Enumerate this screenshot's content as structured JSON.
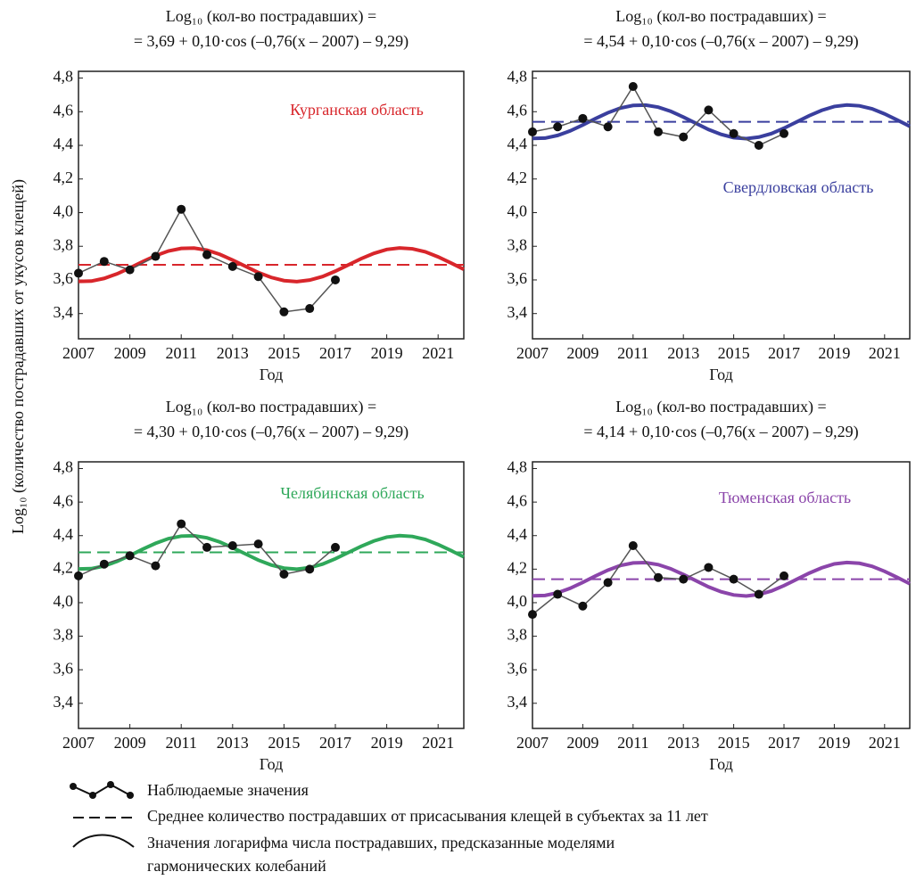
{
  "y_label": "Log₁₀ (количество пострадавших от укусов клещей)",
  "legend": [
    [
      "Наблюдаемые значения"
    ],
    [
      "Среднее количество пострадавших от присасывания клещей в субъектах за 11 лет"
    ],
    [
      "Значения логарифма числа пострадавших, предсказанные моделями",
      "гармонических колебаний"
    ]
  ],
  "chart_data": [
    {
      "type": "line",
      "title": [
        "Log₁₀ (кол-во пострадавших) =",
        "= 3,69 + 0,10·cos (–0,76(x – 2007) – 9,29)"
      ],
      "annotation": "Курганская область",
      "color": "#d8262b",
      "xlabel": "Год",
      "x": [
        2007,
        2008,
        2009,
        2010,
        2011,
        2012,
        2013,
        2014,
        2015,
        2016,
        2017
      ],
      "values": [
        3.64,
        3.71,
        3.66,
        3.74,
        4.02,
        3.75,
        3.68,
        3.62,
        3.41,
        3.43,
        3.6
      ],
      "mean": 3.69,
      "curve_x": [
        2007,
        2007.5,
        2008,
        2008.5,
        2009,
        2009.5,
        2010,
        2010.5,
        2011,
        2011.5,
        2012,
        2012.5,
        2013,
        2013.5,
        2014,
        2014.5,
        2015,
        2015.5,
        2016,
        2016.5,
        2017,
        2017.5,
        2018,
        2018.5,
        2019,
        2019.5,
        2020,
        2020.5,
        2021,
        2021.5,
        2022
      ],
      "curve": [
        3.591,
        3.593,
        3.609,
        3.636,
        3.671,
        3.709,
        3.744,
        3.772,
        3.787,
        3.789,
        3.777,
        3.752,
        3.718,
        3.681,
        3.644,
        3.615,
        3.596,
        3.59,
        3.599,
        3.62,
        3.652,
        3.689,
        3.726,
        3.758,
        3.781,
        3.79,
        3.785,
        3.767,
        3.737,
        3.701,
        3.663
      ],
      "xlim": [
        2007,
        2022
      ],
      "xticks": [
        2007,
        2009,
        2011,
        2013,
        2015,
        2017,
        2019,
        2021
      ],
      "ylim": [
        3.25,
        4.84
      ],
      "yticks": [
        {
          "value": 3.4,
          "label": "3,4"
        },
        {
          "value": 3.6,
          "label": "3,6"
        },
        {
          "value": 3.8,
          "label": "3,8"
        },
        {
          "value": 4.0,
          "label": "4,0"
        },
        {
          "value": 4.2,
          "label": "4,2"
        },
        {
          "value": 4.4,
          "label": "4,4"
        },
        {
          "value": 4.6,
          "label": "4,6"
        },
        {
          "value": 4.8,
          "label": "4,8"
        }
      ]
    },
    {
      "type": "line",
      "title": [
        "Log₁₀ (кол-во пострадавших) =",
        "= 4,54 + 0,10·cos (–0,76(x – 2007) – 9,29)"
      ],
      "annotation": "Свердловская область",
      "color": "#3a3f9e",
      "xlabel": "Год",
      "x": [
        2007,
        2008,
        2009,
        2010,
        2011,
        2012,
        2013,
        2014,
        2015,
        2016,
        2017
      ],
      "values": [
        4.48,
        4.51,
        4.56,
        4.51,
        4.75,
        4.48,
        4.45,
        4.61,
        4.47,
        4.4,
        4.47
      ],
      "mean": 4.54,
      "curve_x": [
        2007,
        2007.5,
        2008,
        2008.5,
        2009,
        2009.5,
        2010,
        2010.5,
        2011,
        2011.5,
        2012,
        2012.5,
        2013,
        2013.5,
        2014,
        2014.5,
        2015,
        2015.5,
        2016,
        2016.5,
        2017,
        2017.5,
        2018,
        2018.5,
        2019,
        2019.5,
        2020,
        2020.5,
        2021,
        2021.5,
        2022
      ],
      "curve": [
        4.441,
        4.443,
        4.459,
        4.486,
        4.521,
        4.559,
        4.594,
        4.622,
        4.637,
        4.639,
        4.627,
        4.602,
        4.568,
        4.531,
        4.494,
        4.465,
        4.446,
        4.44,
        4.449,
        4.47,
        4.502,
        4.539,
        4.576,
        4.608,
        4.631,
        4.64,
        4.635,
        4.617,
        4.587,
        4.551,
        4.513
      ],
      "xlim": [
        2007,
        2022
      ],
      "xticks": [
        2007,
        2009,
        2011,
        2013,
        2015,
        2017,
        2019,
        2021
      ],
      "ylim": [
        3.25,
        4.84
      ],
      "yticks": [
        {
          "value": 3.4,
          "label": "3,4"
        },
        {
          "value": 3.6,
          "label": "3,6"
        },
        {
          "value": 3.8,
          "label": "3,8"
        },
        {
          "value": 4.0,
          "label": "4,0"
        },
        {
          "value": 4.2,
          "label": "4,2"
        },
        {
          "value": 4.4,
          "label": "4,4"
        },
        {
          "value": 4.6,
          "label": "4,6"
        },
        {
          "value": 4.8,
          "label": "4,8"
        }
      ]
    },
    {
      "type": "line",
      "title": [
        "Log₁₀ (кол-во пострадавших) =",
        "= 4,30 + 0,10·cos (–0,76(x – 2007) – 9,29)"
      ],
      "annotation": "Челябинская область",
      "color": "#2fa85a",
      "xlabel": "Год",
      "x": [
        2007,
        2008,
        2009,
        2010,
        2011,
        2012,
        2013,
        2014,
        2015,
        2016,
        2017
      ],
      "values": [
        4.16,
        4.23,
        4.28,
        4.22,
        4.47,
        4.33,
        4.34,
        4.35,
        4.17,
        4.2,
        4.33
      ],
      "mean": 4.3,
      "curve_x": [
        2007,
        2007.5,
        2008,
        2008.5,
        2009,
        2009.5,
        2010,
        2010.5,
        2011,
        2011.5,
        2012,
        2012.5,
        2013,
        2013.5,
        2014,
        2014.5,
        2015,
        2015.5,
        2016,
        2016.5,
        2017,
        2017.5,
        2018,
        2018.5,
        2019,
        2019.5,
        2020,
        2020.5,
        2021,
        2021.5,
        2022
      ],
      "curve": [
        4.201,
        4.203,
        4.219,
        4.246,
        4.281,
        4.319,
        4.354,
        4.382,
        4.397,
        4.399,
        4.387,
        4.362,
        4.328,
        4.291,
        4.254,
        4.225,
        4.206,
        4.2,
        4.209,
        4.23,
        4.262,
        4.299,
        4.336,
        4.368,
        4.391,
        4.4,
        4.395,
        4.377,
        4.347,
        4.311,
        4.273
      ],
      "xlim": [
        2007,
        2022
      ],
      "xticks": [
        2007,
        2009,
        2011,
        2013,
        2015,
        2017,
        2019,
        2021
      ],
      "ylim": [
        3.25,
        4.84
      ],
      "yticks": [
        {
          "value": 3.4,
          "label": "3,4"
        },
        {
          "value": 3.6,
          "label": "3,6"
        },
        {
          "value": 3.8,
          "label": "3,8"
        },
        {
          "value": 4.0,
          "label": "4,0"
        },
        {
          "value": 4.2,
          "label": "4,2"
        },
        {
          "value": 4.4,
          "label": "4,4"
        },
        {
          "value": 4.6,
          "label": "4,6"
        },
        {
          "value": 4.8,
          "label": "4,8"
        }
      ]
    },
    {
      "type": "line",
      "title": [
        "Log₁₀ (кол-во пострадавших) =",
        "= 4,14 + 0,10·cos (–0,76(x – 2007) – 9,29)"
      ],
      "annotation": "Тюменская область",
      "color": "#8b45aa",
      "xlabel": "Год",
      "x": [
        2007,
        2008,
        2009,
        2010,
        2011,
        2012,
        2013,
        2014,
        2015,
        2016,
        2017
      ],
      "values": [
        3.93,
        4.05,
        3.98,
        4.12,
        4.34,
        4.15,
        4.14,
        4.21,
        4.14,
        4.05,
        4.16
      ],
      "mean": 4.14,
      "curve_x": [
        2007,
        2007.5,
        2008,
        2008.5,
        2009,
        2009.5,
        2010,
        2010.5,
        2011,
        2011.5,
        2012,
        2012.5,
        2013,
        2013.5,
        2014,
        2014.5,
        2015,
        2015.5,
        2016,
        2016.5,
        2017,
        2017.5,
        2018,
        2018.5,
        2019,
        2019.5,
        2020,
        2020.5,
        2021,
        2021.5,
        2022
      ],
      "curve": [
        4.041,
        4.043,
        4.059,
        4.086,
        4.121,
        4.159,
        4.194,
        4.222,
        4.237,
        4.239,
        4.227,
        4.202,
        4.168,
        4.131,
        4.094,
        4.065,
        4.046,
        4.04,
        4.049,
        4.07,
        4.102,
        4.139,
        4.176,
        4.208,
        4.231,
        4.24,
        4.235,
        4.217,
        4.187,
        4.151,
        4.113
      ],
      "xlim": [
        2007,
        2022
      ],
      "xticks": [
        2007,
        2009,
        2011,
        2013,
        2015,
        2017,
        2019,
        2021
      ],
      "ylim": [
        3.25,
        4.84
      ],
      "yticks": [
        {
          "value": 3.4,
          "label": "3,4"
        },
        {
          "value": 3.6,
          "label": "3,6"
        },
        {
          "value": 3.8,
          "label": "3,8"
        },
        {
          "value": 4.0,
          "label": "4,0"
        },
        {
          "value": 4.2,
          "label": "4,2"
        },
        {
          "value": 4.4,
          "label": "4,4"
        },
        {
          "value": 4.6,
          "label": "4,6"
        },
        {
          "value": 4.8,
          "label": "4,8"
        }
      ]
    }
  ]
}
